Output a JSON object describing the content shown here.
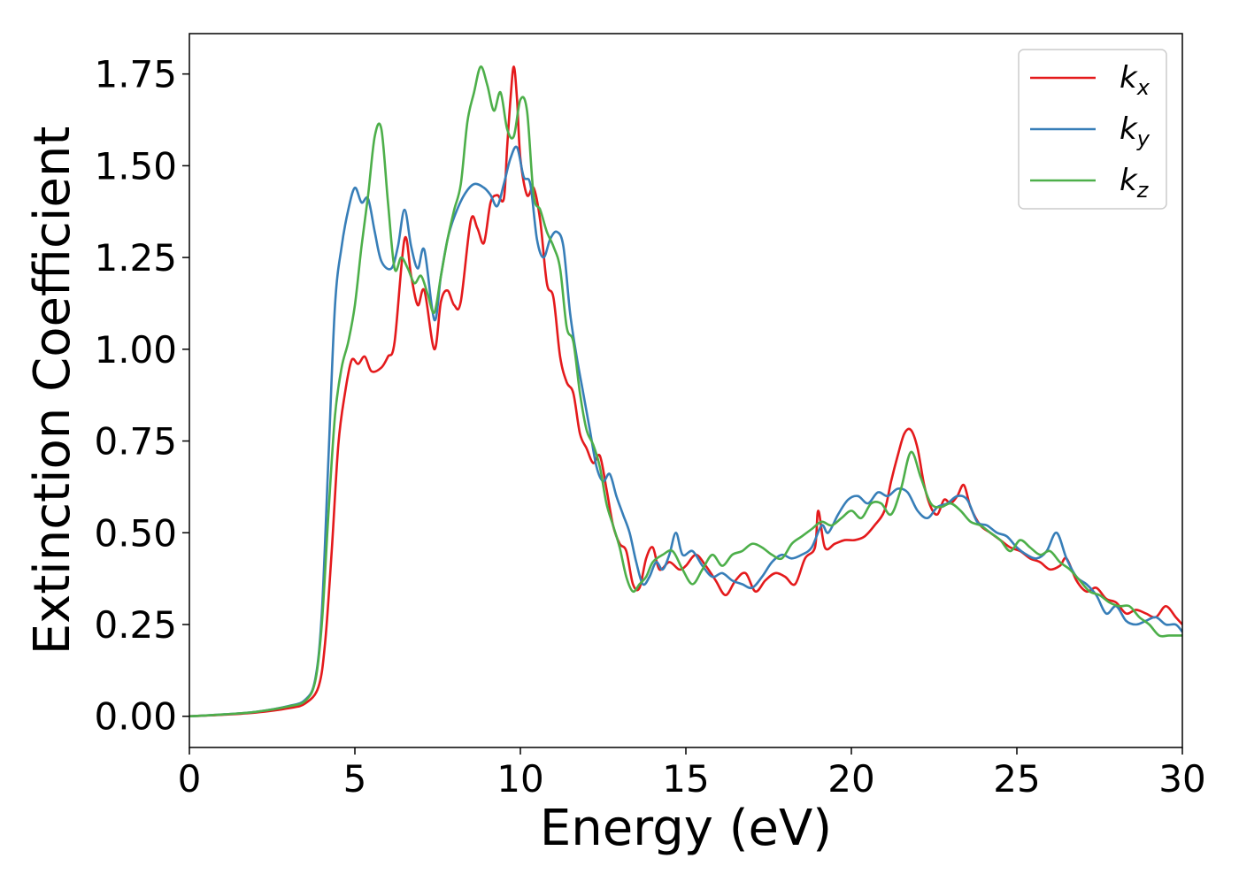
{
  "chart_data": {
    "type": "line",
    "xlabel": "Energy (eV)",
    "ylabel": "Extinction Coefficient",
    "xlim": [
      0,
      30
    ],
    "ylim": [
      -0.085,
      1.86
    ],
    "xticks": [
      0,
      5,
      10,
      15,
      20,
      25,
      30
    ],
    "xtick_labels": [
      "0",
      "5",
      "10",
      "15",
      "20",
      "25",
      "30"
    ],
    "yticks": [
      0,
      0.25,
      0.5,
      0.75,
      1.0,
      1.25,
      1.5,
      1.75
    ],
    "ytick_labels": [
      "0.00",
      "0.25",
      "0.50",
      "0.75",
      "1.00",
      "1.25",
      "1.50",
      "1.75"
    ],
    "grid": false,
    "legend_position": "top-right",
    "series": [
      {
        "name": "k_x",
        "label_base": "k",
        "label_sub": "x",
        "color": "#e41a1c",
        "x": [
          0,
          1,
          2,
          3,
          3.5,
          3.9,
          4.1,
          4.3,
          4.5,
          4.7,
          4.9,
          5.1,
          5.3,
          5.5,
          5.8,
          6.0,
          6.2,
          6.5,
          6.7,
          6.9,
          7.1,
          7.4,
          7.6,
          7.8,
          8.0,
          8.2,
          8.5,
          8.7,
          8.9,
          9.1,
          9.3,
          9.5,
          9.6,
          9.7,
          9.8,
          9.9,
          10.0,
          10.2,
          10.4,
          10.6,
          10.8,
          11.0,
          11.2,
          11.4,
          11.6,
          11.8,
          12.0,
          12.2,
          12.4,
          12.6,
          12.8,
          13.0,
          13.2,
          13.4,
          13.6,
          13.8,
          14.0,
          14.2,
          14.5,
          14.8,
          15.0,
          15.3,
          15.6,
          15.9,
          16.2,
          16.5,
          16.8,
          17.1,
          17.4,
          17.7,
          18.0,
          18.3,
          18.6,
          18.9,
          19.0,
          19.2,
          19.5,
          19.8,
          20.1,
          20.4,
          20.7,
          21.0,
          21.2,
          21.4,
          21.6,
          21.8,
          22.0,
          22.2,
          22.4,
          22.6,
          22.8,
          23.0,
          23.2,
          23.4,
          23.6,
          23.9,
          24.2,
          24.5,
          24.8,
          25.1,
          25.4,
          25.7,
          26.0,
          26.3,
          26.5,
          26.8,
          27.1,
          27.4,
          27.7,
          28.0,
          28.3,
          28.6,
          28.9,
          29.2,
          29.5,
          29.8,
          30.0
        ],
        "y": [
          0,
          0.004,
          0.01,
          0.022,
          0.035,
          0.08,
          0.2,
          0.45,
          0.74,
          0.88,
          0.97,
          0.96,
          0.98,
          0.94,
          0.95,
          0.98,
          1.02,
          1.3,
          1.2,
          1.12,
          1.16,
          1.0,
          1.13,
          1.16,
          1.12,
          1.13,
          1.35,
          1.33,
          1.29,
          1.4,
          1.42,
          1.41,
          1.55,
          1.68,
          1.77,
          1.68,
          1.52,
          1.42,
          1.44,
          1.35,
          1.18,
          1.14,
          0.98,
          0.91,
          0.88,
          0.77,
          0.73,
          0.69,
          0.71,
          0.62,
          0.52,
          0.47,
          0.45,
          0.36,
          0.35,
          0.43,
          0.46,
          0.4,
          0.42,
          0.4,
          0.41,
          0.44,
          0.41,
          0.37,
          0.33,
          0.37,
          0.39,
          0.34,
          0.37,
          0.39,
          0.38,
          0.36,
          0.43,
          0.46,
          0.56,
          0.46,
          0.47,
          0.48,
          0.48,
          0.49,
          0.52,
          0.56,
          0.64,
          0.71,
          0.77,
          0.78,
          0.73,
          0.63,
          0.57,
          0.55,
          0.59,
          0.58,
          0.6,
          0.63,
          0.57,
          0.52,
          0.5,
          0.48,
          0.46,
          0.45,
          0.43,
          0.42,
          0.4,
          0.41,
          0.43,
          0.37,
          0.34,
          0.35,
          0.32,
          0.31,
          0.28,
          0.29,
          0.28,
          0.27,
          0.3,
          0.27,
          0.25
        ]
      },
      {
        "name": "k_y",
        "label_base": "k",
        "label_sub": "y",
        "color": "#377eb8",
        "x": [
          0,
          1,
          2,
          3,
          3.5,
          3.8,
          4.0,
          4.2,
          4.4,
          4.6,
          4.8,
          5.0,
          5.2,
          5.4,
          5.6,
          5.8,
          6.1,
          6.3,
          6.5,
          6.7,
          6.9,
          7.1,
          7.4,
          7.6,
          7.8,
          8.0,
          8.3,
          8.6,
          8.9,
          9.1,
          9.3,
          9.5,
          9.7,
          9.9,
          10.1,
          10.3,
          10.5,
          10.7,
          10.9,
          11.1,
          11.3,
          11.5,
          11.7,
          11.9,
          12.1,
          12.3,
          12.5,
          12.7,
          12.9,
          13.1,
          13.3,
          13.5,
          13.7,
          13.9,
          14.1,
          14.3,
          14.5,
          14.7,
          14.9,
          15.2,
          15.5,
          15.8,
          16.1,
          16.4,
          16.7,
          17.0,
          17.3,
          17.6,
          17.9,
          18.2,
          18.5,
          18.8,
          19.1,
          19.3,
          19.6,
          19.9,
          20.2,
          20.5,
          20.8,
          21.1,
          21.4,
          21.7,
          22.0,
          22.3,
          22.6,
          22.9,
          23.2,
          23.5,
          23.8,
          24.1,
          24.4,
          24.7,
          25.0,
          25.3,
          25.6,
          25.9,
          26.2,
          26.5,
          26.8,
          27.1,
          27.4,
          27.7,
          28.0,
          28.3,
          28.6,
          28.9,
          29.2,
          29.5,
          29.8,
          30.0
        ],
        "y": [
          0,
          0.005,
          0.012,
          0.028,
          0.045,
          0.1,
          0.28,
          0.7,
          1.12,
          1.28,
          1.38,
          1.44,
          1.4,
          1.41,
          1.32,
          1.24,
          1.22,
          1.28,
          1.38,
          1.28,
          1.22,
          1.27,
          1.08,
          1.2,
          1.3,
          1.36,
          1.42,
          1.45,
          1.44,
          1.42,
          1.39,
          1.45,
          1.52,
          1.55,
          1.47,
          1.45,
          1.3,
          1.25,
          1.3,
          1.32,
          1.28,
          1.1,
          0.98,
          0.88,
          0.78,
          0.68,
          0.64,
          0.66,
          0.6,
          0.55,
          0.5,
          0.42,
          0.36,
          0.38,
          0.42,
          0.4,
          0.44,
          0.5,
          0.44,
          0.45,
          0.41,
          0.38,
          0.39,
          0.37,
          0.36,
          0.35,
          0.38,
          0.42,
          0.44,
          0.43,
          0.44,
          0.46,
          0.52,
          0.5,
          0.55,
          0.59,
          0.6,
          0.58,
          0.61,
          0.6,
          0.62,
          0.61,
          0.56,
          0.54,
          0.57,
          0.58,
          0.6,
          0.59,
          0.53,
          0.52,
          0.5,
          0.49,
          0.46,
          0.44,
          0.43,
          0.45,
          0.5,
          0.43,
          0.38,
          0.36,
          0.33,
          0.28,
          0.3,
          0.26,
          0.25,
          0.26,
          0.27,
          0.25,
          0.25,
          0.23
        ]
      },
      {
        "name": "k_z",
        "label_base": "k",
        "label_sub": "z",
        "color": "#4daf4a",
        "x": [
          0,
          1,
          2,
          3,
          3.5,
          3.8,
          4.0,
          4.2,
          4.4,
          4.6,
          4.8,
          5.0,
          5.2,
          5.4,
          5.6,
          5.8,
          6.0,
          6.2,
          6.4,
          6.6,
          6.8,
          7.0,
          7.2,
          7.4,
          7.6,
          7.8,
          8.0,
          8.2,
          8.4,
          8.6,
          8.8,
          9.0,
          9.2,
          9.4,
          9.6,
          9.8,
          10.0,
          10.2,
          10.4,
          10.6,
          10.8,
          11.0,
          11.2,
          11.4,
          11.6,
          11.8,
          12.0,
          12.2,
          12.4,
          12.6,
          12.8,
          13.0,
          13.2,
          13.4,
          13.6,
          13.8,
          14.0,
          14.3,
          14.6,
          14.9,
          15.2,
          15.5,
          15.8,
          16.1,
          16.4,
          16.7,
          17.0,
          17.3,
          17.6,
          17.9,
          18.2,
          18.5,
          18.8,
          19.1,
          19.4,
          19.7,
          20.0,
          20.3,
          20.6,
          20.9,
          21.2,
          21.5,
          21.8,
          22.1,
          22.4,
          22.7,
          23.0,
          23.3,
          23.6,
          23.9,
          24.2,
          24.5,
          24.8,
          25.1,
          25.4,
          25.7,
          26.0,
          26.3,
          26.6,
          26.9,
          27.2,
          27.5,
          27.8,
          28.1,
          28.4,
          28.7,
          29.0,
          29.3,
          29.6,
          30.0
        ],
        "y": [
          0,
          0.005,
          0.012,
          0.027,
          0.042,
          0.095,
          0.25,
          0.55,
          0.82,
          0.95,
          1.02,
          1.12,
          1.28,
          1.42,
          1.58,
          1.6,
          1.4,
          1.22,
          1.25,
          1.22,
          1.18,
          1.2,
          1.15,
          1.1,
          1.2,
          1.3,
          1.38,
          1.45,
          1.62,
          1.7,
          1.77,
          1.72,
          1.65,
          1.7,
          1.6,
          1.58,
          1.68,
          1.65,
          1.42,
          1.38,
          1.32,
          1.28,
          1.22,
          1.06,
          1.02,
          0.88,
          0.78,
          0.74,
          0.68,
          0.58,
          0.52,
          0.46,
          0.38,
          0.34,
          0.36,
          0.38,
          0.42,
          0.44,
          0.45,
          0.4,
          0.36,
          0.4,
          0.44,
          0.41,
          0.44,
          0.45,
          0.47,
          0.46,
          0.44,
          0.43,
          0.47,
          0.49,
          0.51,
          0.53,
          0.52,
          0.54,
          0.56,
          0.54,
          0.58,
          0.58,
          0.55,
          0.62,
          0.72,
          0.65,
          0.58,
          0.57,
          0.58,
          0.56,
          0.53,
          0.52,
          0.5,
          0.48,
          0.45,
          0.48,
          0.46,
          0.44,
          0.45,
          0.42,
          0.4,
          0.37,
          0.34,
          0.33,
          0.31,
          0.3,
          0.3,
          0.27,
          0.25,
          0.22,
          0.22,
          0.22
        ]
      }
    ]
  }
}
